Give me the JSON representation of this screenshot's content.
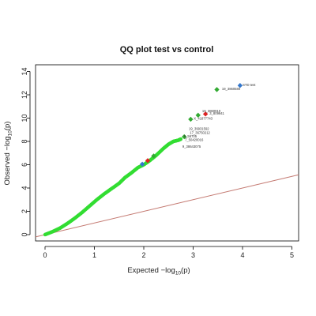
{
  "chart_data": {
    "type": "scatter",
    "title": "QQ plot test vs control",
    "xlabel": "Expected",
    "ylabel": "Observed",
    "log_label": "−log",
    "log_sub": "10",
    "log_arg": "(p)",
    "xlim": [
      0,
      5
    ],
    "ylim": [
      0,
      14
    ],
    "xticks": [
      0,
      1,
      2,
      3,
      4,
      5
    ],
    "yticks": [
      0,
      2,
      4,
      6,
      8,
      10,
      12,
      14
    ],
    "grid": false,
    "reference_line": {
      "from": [
        0,
        0
      ],
      "to": [
        5,
        5
      ],
      "color": "#c47a72"
    },
    "colors": {
      "points": "#33dd33",
      "annotated_green": "#33aa33",
      "red": "#dd2222",
      "blue": "#3377cc",
      "text": "#333333"
    },
    "curve": {
      "x": [
        0,
        0.15,
        0.3,
        0.45,
        0.6,
        0.75,
        0.9,
        1.05,
        1.2,
        1.35,
        1.5,
        1.62,
        1.75,
        1.88,
        2.0,
        2.12,
        2.25,
        2.4,
        2.5,
        2.6,
        2.7,
        2.75
      ],
      "y": [
        0,
        0.25,
        0.55,
        0.95,
        1.4,
        1.9,
        2.45,
        3.0,
        3.5,
        3.95,
        4.4,
        4.9,
        5.3,
        5.75,
        6.0,
        6.35,
        6.8,
        7.4,
        7.75,
        8.0,
        8.1,
        8.2
      ]
    },
    "highlights": [
      {
        "x": 1.97,
        "y": 6.05,
        "color": "blue"
      },
      {
        "x": 2.08,
        "y": 6.35,
        "color": "red"
      },
      {
        "x": 2.2,
        "y": 6.75,
        "color": "annotated_green"
      },
      {
        "x": 2.82,
        "y": 8.4,
        "color": "annotated_green"
      },
      {
        "x": 2.95,
        "y": 9.9,
        "color": "annotated_green"
      },
      {
        "x": 3.1,
        "y": 10.25,
        "color": "annotated_green"
      },
      {
        "x": 3.25,
        "y": 10.35,
        "color": "red"
      },
      {
        "x": 3.48,
        "y": 12.45,
        "color": "annotated_green"
      },
      {
        "x": 3.95,
        "y": 12.8,
        "color": "blue"
      }
    ],
    "annotations": [
      {
        "text": "STD test",
        "x": 3.97,
        "y": 12.85
      },
      {
        "text": "19_3860580",
        "x": 3.55,
        "y": 12.5
      },
      {
        "text": "19_3860910",
        "x": 3.15,
        "y": 10.6
      },
      {
        "text": "3_809941",
        "x": 3.3,
        "y": 10.4
      },
      {
        "text": "X_41877743",
        "x": 2.98,
        "y": 9.95
      },
      {
        "text": "19_39931592",
        "x": 2.88,
        "y": 9.1
      },
      {
        "text": "17_36750212",
        "x": 2.9,
        "y": 8.75
      },
      {
        "text": "5_56705",
        "x": 2.78,
        "y": 8.45
      },
      {
        "text": "7_50420016",
        "x": 2.8,
        "y": 8.15
      },
      {
        "text": "9_38643075",
        "x": 2.75,
        "y": 7.55
      }
    ]
  }
}
